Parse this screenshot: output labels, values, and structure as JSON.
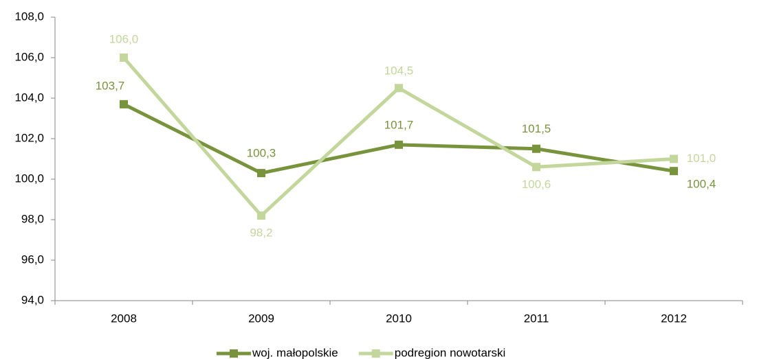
{
  "chart_data": {
    "type": "line",
    "categories": [
      "2008",
      "2009",
      "2010",
      "2011",
      "2012"
    ],
    "series": [
      {
        "name": "woj. małopolskie",
        "color": "#77933c",
        "values": [
          103.7,
          100.3,
          101.7,
          101.5,
          100.4
        ],
        "value_labels": [
          "103,7",
          "100,3",
          "101,7",
          "101,5",
          "100,4"
        ]
      },
      {
        "name": "podregion nowotarski",
        "color": "#c3d69b",
        "values": [
          106.0,
          98.2,
          104.5,
          100.6,
          101.0
        ],
        "value_labels": [
          "106,0",
          "98,2",
          "104,5",
          "100,6",
          "101,0"
        ]
      }
    ],
    "ylim": [
      94,
      108
    ],
    "yticks": [
      {
        "value": 94,
        "label": "94,0"
      },
      {
        "value": 96,
        "label": "96,0"
      },
      {
        "value": 98,
        "label": "98,0"
      },
      {
        "value": 100,
        "label": "100,0"
      },
      {
        "value": 102,
        "label": "102,0"
      },
      {
        "value": 104,
        "label": "104,0"
      },
      {
        "value": 106,
        "label": "106,0"
      },
      {
        "value": 108,
        "label": "108,0"
      }
    ],
    "grid": false,
    "legend": "bottom"
  }
}
